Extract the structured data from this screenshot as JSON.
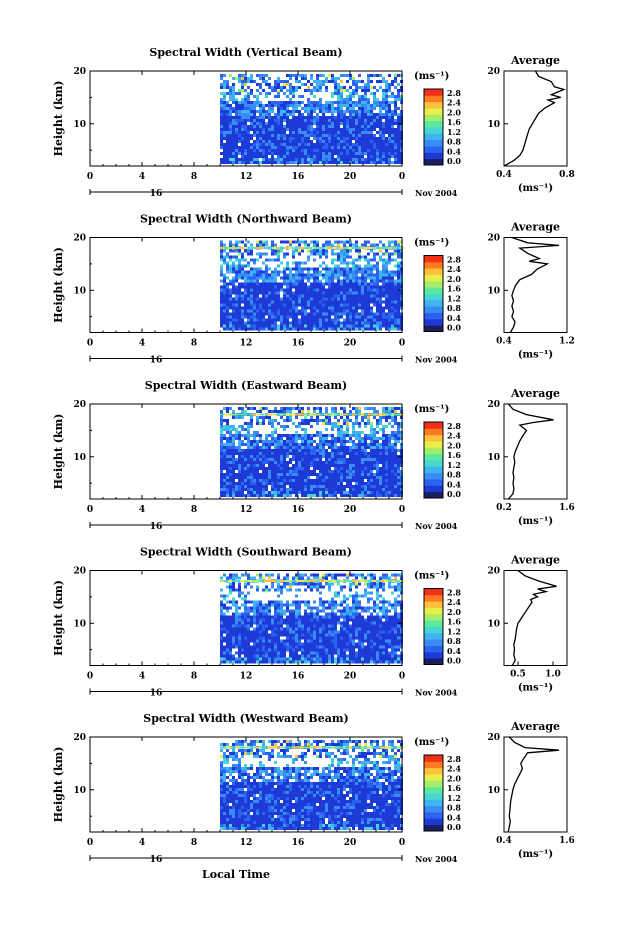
{
  "figure": {
    "xlabel": "Local Time",
    "colors": [
      "#1a1f5e",
      "#1e3ad6",
      "#2b62f0",
      "#3a8cf5",
      "#3fb4f0",
      "#46d7d2",
      "#5de8a0",
      "#a6ee6a",
      "#e8ee4a",
      "#ffc23a",
      "#ff7a22",
      "#f23018"
    ],
    "panel_box": {
      "left": 90,
      "right": 402,
      "height": 95,
      "top_first": 71,
      "spacing": 166.5
    },
    "avg_box": {
      "left": 504,
      "right": 567
    },
    "cb_box": {
      "left": 424,
      "right": 443
    }
  },
  "chart_data": [
    {
      "type": "heatmap",
      "title": "Spectral Width (Vertical Beam)",
      "ylabel": "Height (km)",
      "xticks": [
        "0",
        "4",
        "8",
        "12",
        "16",
        "20",
        "0"
      ],
      "xlim": [
        0,
        24
      ],
      "ylim": [
        2,
        20
      ],
      "yticks": [
        "20",
        "10"
      ],
      "date_tick": "16",
      "date_label": "Nov 2004",
      "data_start_hour": 10,
      "colorbar_unit": "(ms⁻¹)",
      "colorbar_ticks": [
        "2.8",
        "2.4",
        "2.0",
        "1.6",
        "1.2",
        "0.8",
        "0.4",
        "0.0"
      ],
      "avg": {
        "title": "Average",
        "xlabel": "(ms⁻¹)",
        "xlim": [
          0.4,
          0.8
        ],
        "xticks": [
          "0.4",
          "0.8"
        ],
        "yticks": [
          "20",
          "10"
        ],
        "profile": [
          [
            0.4,
            2
          ],
          [
            0.46,
            3
          ],
          [
            0.5,
            4
          ],
          [
            0.52,
            5
          ],
          [
            0.53,
            6
          ],
          [
            0.54,
            7
          ],
          [
            0.55,
            8
          ],
          [
            0.56,
            9
          ],
          [
            0.58,
            10
          ],
          [
            0.6,
            11
          ],
          [
            0.62,
            12
          ],
          [
            0.66,
            13
          ],
          [
            0.72,
            14
          ],
          [
            0.68,
            14.5
          ],
          [
            0.76,
            15
          ],
          [
            0.7,
            15.5
          ],
          [
            0.74,
            16
          ],
          [
            0.78,
            16.5
          ],
          [
            0.72,
            17
          ],
          [
            0.7,
            18
          ],
          [
            0.62,
            19
          ],
          [
            0.6,
            20
          ]
        ]
      }
    },
    {
      "type": "heatmap",
      "title": "Spectral Width (Northward Beam)",
      "ylabel": "Height (km)",
      "xticks": [
        "0",
        "4",
        "8",
        "12",
        "16",
        "20",
        "0"
      ],
      "xlim": [
        0,
        24
      ],
      "ylim": [
        2,
        20
      ],
      "yticks": [
        "20",
        "10"
      ],
      "date_tick": "16",
      "date_label": "Nov 2004",
      "data_start_hour": 10,
      "colorbar_unit": "(ms⁻¹)",
      "colorbar_ticks": [
        "2.8",
        "2.4",
        "2.0",
        "1.6",
        "1.2",
        "0.8",
        "0.4",
        "0.0"
      ],
      "avg": {
        "title": "Average",
        "xlabel": "(ms⁻¹)",
        "xlim": [
          0.4,
          1.2
        ],
        "xticks": [
          "0.4",
          "1.2"
        ],
        "yticks": [
          "20",
          "10"
        ],
        "profile": [
          [
            0.48,
            2
          ],
          [
            0.52,
            3
          ],
          [
            0.54,
            4
          ],
          [
            0.5,
            5
          ],
          [
            0.52,
            6
          ],
          [
            0.5,
            7
          ],
          [
            0.52,
            8
          ],
          [
            0.5,
            9
          ],
          [
            0.52,
            10
          ],
          [
            0.55,
            11
          ],
          [
            0.6,
            12
          ],
          [
            0.75,
            13
          ],
          [
            0.82,
            14
          ],
          [
            0.95,
            15
          ],
          [
            0.72,
            15.5
          ],
          [
            0.85,
            16
          ],
          [
            0.7,
            17
          ],
          [
            0.6,
            18
          ],
          [
            1.1,
            18.5
          ],
          [
            0.7,
            19
          ],
          [
            0.5,
            20
          ]
        ]
      }
    },
    {
      "type": "heatmap",
      "title": "Spectral Width (Eastward Beam)",
      "ylabel": "Height (km)",
      "xticks": [
        "0",
        "4",
        "8",
        "12",
        "16",
        "20",
        "0"
      ],
      "xlim": [
        0,
        24
      ],
      "ylim": [
        2,
        20
      ],
      "yticks": [
        "20",
        "10"
      ],
      "date_tick": "16",
      "date_label": "Nov 2004",
      "data_start_hour": 10,
      "colorbar_unit": "(ms⁻¹)",
      "colorbar_ticks": [
        "2.8",
        "2.4",
        "2.0",
        "1.6",
        "1.2",
        "0.8",
        "0.4",
        "0.0"
      ],
      "avg": {
        "title": "Average",
        "xlabel": "(ms⁻¹)",
        "xlim": [
          0.2,
          1.6
        ],
        "xticks": [
          "0.2",
          "1.6"
        ],
        "yticks": [
          "20",
          "10"
        ],
        "profile": [
          [
            0.3,
            2
          ],
          [
            0.4,
            3
          ],
          [
            0.42,
            4
          ],
          [
            0.4,
            5
          ],
          [
            0.42,
            6
          ],
          [
            0.4,
            7
          ],
          [
            0.42,
            8
          ],
          [
            0.44,
            9
          ],
          [
            0.42,
            10
          ],
          [
            0.45,
            11
          ],
          [
            0.5,
            12
          ],
          [
            0.55,
            13
          ],
          [
            0.62,
            14
          ],
          [
            0.7,
            15
          ],
          [
            0.55,
            16
          ],
          [
            0.85,
            16.5
          ],
          [
            1.3,
            17
          ],
          [
            0.7,
            18
          ],
          [
            0.4,
            19
          ],
          [
            0.3,
            20
          ]
        ]
      }
    },
    {
      "type": "heatmap",
      "title": "Spectral Width (Southward Beam)",
      "ylabel": "Height (km)",
      "xticks": [
        "0",
        "4",
        "8",
        "12",
        "16",
        "20",
        "0"
      ],
      "xlim": [
        0,
        24
      ],
      "ylim": [
        2,
        20
      ],
      "yticks": [
        "20",
        "10"
      ],
      "date_tick": "16",
      "date_label": "Nov 2004",
      "data_start_hour": 10,
      "colorbar_unit": "(ms⁻¹)",
      "colorbar_ticks": [
        "2.8",
        "2.4",
        "2.0",
        "1.6",
        "1.2",
        "0.8",
        "0.4",
        "0.0"
      ],
      "avg": {
        "title": "Average",
        "xlabel": "(ms⁻¹)",
        "xlim": [
          0.3,
          1.2
        ],
        "xticks": [
          "0.5",
          "1.0"
        ],
        "yticks": [
          "20",
          "10"
        ],
        "profile": [
          [
            0.42,
            2
          ],
          [
            0.46,
            3
          ],
          [
            0.44,
            4
          ],
          [
            0.45,
            5
          ],
          [
            0.44,
            6
          ],
          [
            0.46,
            7
          ],
          [
            0.47,
            8
          ],
          [
            0.48,
            9
          ],
          [
            0.5,
            10
          ],
          [
            0.55,
            11
          ],
          [
            0.6,
            12
          ],
          [
            0.65,
            13
          ],
          [
            0.7,
            14
          ],
          [
            0.68,
            14.5
          ],
          [
            0.78,
            15
          ],
          [
            0.72,
            15.5
          ],
          [
            0.9,
            16
          ],
          [
            0.78,
            16.5
          ],
          [
            1.05,
            17
          ],
          [
            0.8,
            18
          ],
          [
            0.6,
            19
          ],
          [
            0.5,
            20
          ]
        ]
      }
    },
    {
      "type": "heatmap",
      "title": "Spectral Width (Westward Beam)",
      "ylabel": "Height (km)",
      "xticks": [
        "0",
        "4",
        "8",
        "12",
        "16",
        "20",
        "0"
      ],
      "xlim": [
        0,
        24
      ],
      "ylim": [
        2,
        20
      ],
      "yticks": [
        "20",
        "10"
      ],
      "date_tick": "16",
      "date_label": "Nov 2004",
      "data_start_hour": 10,
      "colorbar_unit": "(ms⁻¹)",
      "colorbar_ticks": [
        "2.8",
        "2.4",
        "2.0",
        "1.6",
        "1.2",
        "0.8",
        "0.4",
        "0.0"
      ],
      "avg": {
        "title": "Average",
        "xlabel": "(ms⁻¹)",
        "xlim": [
          0.4,
          1.6
        ],
        "xticks": [
          "0.4",
          "1.6"
        ],
        "yticks": [
          "20",
          "10"
        ],
        "profile": [
          [
            0.48,
            2
          ],
          [
            0.5,
            3
          ],
          [
            0.52,
            4
          ],
          [
            0.5,
            5
          ],
          [
            0.51,
            6
          ],
          [
            0.52,
            7
          ],
          [
            0.53,
            8
          ],
          [
            0.55,
            9
          ],
          [
            0.57,
            10
          ],
          [
            0.6,
            11
          ],
          [
            0.65,
            12
          ],
          [
            0.7,
            13
          ],
          [
            0.75,
            14
          ],
          [
            0.72,
            15
          ],
          [
            0.78,
            16
          ],
          [
            0.85,
            17
          ],
          [
            1.45,
            17.5
          ],
          [
            0.8,
            18
          ],
          [
            0.6,
            19
          ],
          [
            0.5,
            20
          ]
        ]
      }
    }
  ]
}
